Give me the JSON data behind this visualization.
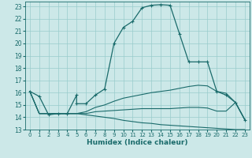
{
  "xlabel": "Humidex (Indice chaleur)",
  "bg_color": "#cce8e8",
  "grid_color": "#99cccc",
  "line_color": "#1a6b6b",
  "xlim": [
    -0.5,
    23.5
  ],
  "ylim": [
    13,
    23.4
  ],
  "xticks": [
    0,
    1,
    2,
    3,
    4,
    5,
    6,
    7,
    8,
    9,
    10,
    11,
    12,
    13,
    14,
    15,
    16,
    17,
    18,
    19,
    20,
    21,
    22,
    23
  ],
  "yticks": [
    13,
    14,
    15,
    16,
    17,
    18,
    19,
    20,
    21,
    22,
    23
  ],
  "line1_x": [
    0,
    1,
    2,
    3,
    4,
    5,
    5,
    6,
    7,
    8,
    9,
    10,
    11,
    12,
    13,
    14,
    15,
    16,
    17,
    18,
    19,
    20,
    21,
    22,
    23
  ],
  "line1_y": [
    16.1,
    15.7,
    14.2,
    14.3,
    14.3,
    15.8,
    15.1,
    15.1,
    15.8,
    16.3,
    20.0,
    21.3,
    21.8,
    22.9,
    23.1,
    23.15,
    23.1,
    20.8,
    18.5,
    18.5,
    18.5,
    16.1,
    15.8,
    15.2,
    13.8
  ],
  "line2_x": [
    0,
    1,
    2,
    3,
    4,
    5,
    6,
    7,
    8,
    9,
    10,
    11,
    12,
    13,
    14,
    15,
    16,
    17,
    18,
    19,
    20,
    21,
    22,
    23
  ],
  "line2_y": [
    16.1,
    14.3,
    14.3,
    14.3,
    14.3,
    14.3,
    14.45,
    14.8,
    15.0,
    15.3,
    15.55,
    15.7,
    15.85,
    16.0,
    16.1,
    16.2,
    16.35,
    16.5,
    16.6,
    16.55,
    16.1,
    15.95,
    15.2,
    13.8
  ],
  "line3_x": [
    0,
    1,
    2,
    3,
    4,
    5,
    6,
    7,
    8,
    9,
    10,
    11,
    12,
    13,
    14,
    15,
    16,
    17,
    18,
    19,
    20,
    21,
    22,
    23
  ],
  "line3_y": [
    16.1,
    14.3,
    14.3,
    14.3,
    14.3,
    14.3,
    14.3,
    14.45,
    14.5,
    14.55,
    14.6,
    14.65,
    14.7,
    14.7,
    14.7,
    14.7,
    14.75,
    14.8,
    14.8,
    14.75,
    14.5,
    14.5,
    15.2,
    13.8
  ],
  "line4_x": [
    0,
    1,
    2,
    3,
    4,
    5,
    6,
    7,
    8,
    9,
    10,
    11,
    12,
    13,
    14,
    15,
    16,
    17,
    18,
    19,
    20,
    21,
    22,
    23
  ],
  "line4_y": [
    16.1,
    14.3,
    14.3,
    14.3,
    14.3,
    14.3,
    14.2,
    14.1,
    14.0,
    13.9,
    13.75,
    13.65,
    13.55,
    13.5,
    13.4,
    13.35,
    13.3,
    13.25,
    13.2,
    13.15,
    13.1,
    13.05,
    13.0,
    13.0
  ]
}
